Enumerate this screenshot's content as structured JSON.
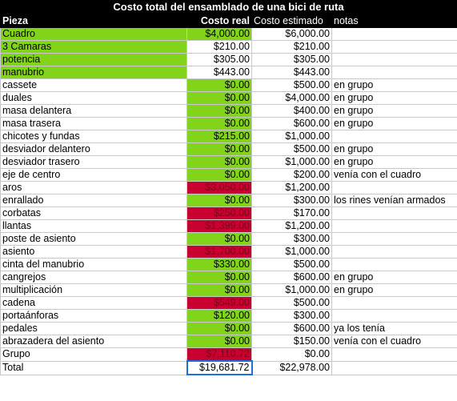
{
  "title": "Costo total del ensamblado de una bici de ruta",
  "headers": {
    "pieza": "Pieza",
    "real": "Costo real",
    "estimado": "Costo estimado",
    "notas": "notas"
  },
  "colors": {
    "green": "#81d41a",
    "red": "#c9002f",
    "header": "#000000"
  },
  "rows": [
    {
      "pieza": "Cuadro",
      "real": "$4,000.00",
      "estimado": "$6,000.00",
      "notas": "",
      "name_fill": "green",
      "real_fill": "green"
    },
    {
      "pieza": "3 Camaras",
      "real": "$210.00",
      "estimado": "$210.00",
      "notas": "",
      "name_fill": "green",
      "real_fill": "none"
    },
    {
      "pieza": "potencia",
      "real": "$305.00",
      "estimado": "$305.00",
      "notas": "",
      "name_fill": "green",
      "real_fill": "none"
    },
    {
      "pieza": "manubrio",
      "real": "$443.00",
      "estimado": "$443.00",
      "notas": "",
      "name_fill": "green",
      "real_fill": "none"
    },
    {
      "pieza": "cassete",
      "real": "$0.00",
      "estimado": "$500.00",
      "notas": "en grupo",
      "name_fill": "none",
      "real_fill": "green"
    },
    {
      "pieza": "duales",
      "real": "$0.00",
      "estimado": "$4,000.00",
      "notas": "en grupo",
      "name_fill": "none",
      "real_fill": "green"
    },
    {
      "pieza": "masa delantera",
      "real": "$0.00",
      "estimado": "$400.00",
      "notas": "en grupo",
      "name_fill": "none",
      "real_fill": "green"
    },
    {
      "pieza": "masa trasera",
      "real": "$0.00",
      "estimado": "$600.00",
      "notas": "en grupo",
      "name_fill": "none",
      "real_fill": "green"
    },
    {
      "pieza": "chicotes y fundas",
      "real": "$215.00",
      "estimado": "$1,000.00",
      "notas": "",
      "name_fill": "none",
      "real_fill": "green"
    },
    {
      "pieza": "desviador delantero",
      "real": "$0.00",
      "estimado": "$500.00",
      "notas": "en grupo",
      "name_fill": "none",
      "real_fill": "green"
    },
    {
      "pieza": "desviador trasero",
      "real": "$0.00",
      "estimado": "$1,000.00",
      "notas": "en grupo",
      "name_fill": "none",
      "real_fill": "green"
    },
    {
      "pieza": "eje de centro",
      "real": "$0.00",
      "estimado": "$200.00",
      "notas": "venía con el cuadro",
      "name_fill": "none",
      "real_fill": "green"
    },
    {
      "pieza": "aros",
      "real": "$3,050.00",
      "estimado": "$1,200.00",
      "notas": "",
      "name_fill": "none",
      "real_fill": "red"
    },
    {
      "pieza": "enrallado",
      "real": "$0.00",
      "estimado": "$300.00",
      "notas": "los rines venían armados",
      "name_fill": "none",
      "real_fill": "green"
    },
    {
      "pieza": "corbatas",
      "real": "$250.00",
      "estimado": "$170.00",
      "notas": "",
      "name_fill": "none",
      "real_fill": "red"
    },
    {
      "pieza": "llantas",
      "real": "$1,399.00",
      "estimado": "$1,200.00",
      "notas": "",
      "name_fill": "none",
      "real_fill": "red"
    },
    {
      "pieza": "poste de asiento",
      "real": "$0.00",
      "estimado": "$300.00",
      "notas": "",
      "name_fill": "none",
      "real_fill": "green"
    },
    {
      "pieza": "asiento",
      "real": "$1,700.00",
      "estimado": "$1,000.00",
      "notas": "",
      "name_fill": "none",
      "real_fill": "red"
    },
    {
      "pieza": "cinta del manubrio",
      "real": "$330.00",
      "estimado": "$500.00",
      "notas": "",
      "name_fill": "none",
      "real_fill": "green"
    },
    {
      "pieza": "cangrejos",
      "real": "$0.00",
      "estimado": "$600.00",
      "notas": "en grupo",
      "name_fill": "none",
      "real_fill": "green"
    },
    {
      "pieza": "multiplicación",
      "real": "$0.00",
      "estimado": "$1,000.00",
      "notas": "en grupo",
      "name_fill": "none",
      "real_fill": "green"
    },
    {
      "pieza": "cadena",
      "real": "$549.00",
      "estimado": "$500.00",
      "notas": "",
      "name_fill": "none",
      "real_fill": "red"
    },
    {
      "pieza": "portaánforas",
      "real": "$120.00",
      "estimado": "$300.00",
      "notas": "",
      "name_fill": "none",
      "real_fill": "green"
    },
    {
      "pieza": "pedales",
      "real": "$0.00",
      "estimado": "$600.00",
      "notas": "ya los tenía",
      "name_fill": "none",
      "real_fill": "green"
    },
    {
      "pieza": "abrazadera del asiento",
      "real": "$0.00",
      "estimado": "$150.00",
      "notas": "venía con el cuadro",
      "name_fill": "none",
      "real_fill": "green"
    },
    {
      "pieza": "Grupo",
      "real": "$7,110.72",
      "estimado": "$0.00",
      "notas": "",
      "name_fill": "none",
      "real_fill": "red"
    },
    {
      "pieza": "Total",
      "real": "$19,681.72",
      "estimado": "$22,978.00",
      "notas": "",
      "name_fill": "none",
      "real_fill": "none",
      "selected": true
    }
  ]
}
